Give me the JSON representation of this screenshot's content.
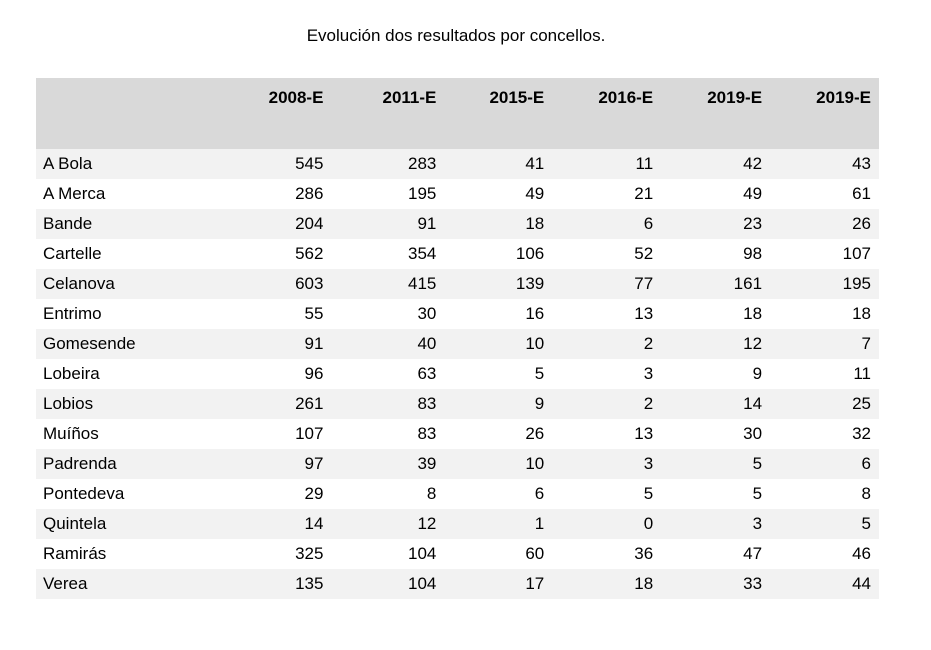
{
  "title": "Evolución dos resultados por concellos.",
  "table": {
    "columns": [
      "2008-E",
      "2011-E",
      "2015-E",
      "2016-E",
      "2019-E",
      "2019-E"
    ],
    "rows": [
      {
        "name": "A Bola",
        "values": [
          "545",
          "283",
          "41",
          "11",
          "42",
          "43"
        ]
      },
      {
        "name": "A Merca",
        "values": [
          "286",
          "195",
          "49",
          "21",
          "49",
          "61"
        ]
      },
      {
        "name": "Bande",
        "values": [
          "204",
          "91",
          "18",
          "6",
          "23",
          "26"
        ]
      },
      {
        "name": "Cartelle",
        "values": [
          "562",
          "354",
          "106",
          "52",
          "98",
          "107"
        ]
      },
      {
        "name": "Celanova",
        "values": [
          "603",
          "415",
          "139",
          "77",
          "161",
          "195"
        ]
      },
      {
        "name": "Entrimo",
        "values": [
          "55",
          "30",
          "16",
          "13",
          "18",
          "18"
        ]
      },
      {
        "name": "Gomesende",
        "values": [
          "91",
          "40",
          "10",
          "2",
          "12",
          "7"
        ]
      },
      {
        "name": "Lobeira",
        "values": [
          "96",
          "63",
          "5",
          "3",
          "9",
          "11"
        ]
      },
      {
        "name": "Lobios",
        "values": [
          "261",
          "83",
          "9",
          "2",
          "14",
          "25"
        ]
      },
      {
        "name": "Muíños",
        "values": [
          "107",
          "83",
          "26",
          "13",
          "30",
          "32"
        ]
      },
      {
        "name": "Padrenda",
        "values": [
          "97",
          "39",
          "10",
          "3",
          "5",
          "6"
        ]
      },
      {
        "name": "Pontedeva",
        "values": [
          "29",
          "8",
          "6",
          "5",
          "5",
          "8"
        ]
      },
      {
        "name": "Quintela",
        "values": [
          "14",
          "12",
          "1",
          "0",
          "3",
          "5"
        ]
      },
      {
        "name": "Ramirás",
        "values": [
          "325",
          "104",
          "60",
          "36",
          "47",
          "46"
        ]
      },
      {
        "name": "Verea",
        "values": [
          "135",
          "104",
          "17",
          "18",
          "33",
          "44"
        ]
      }
    ]
  }
}
